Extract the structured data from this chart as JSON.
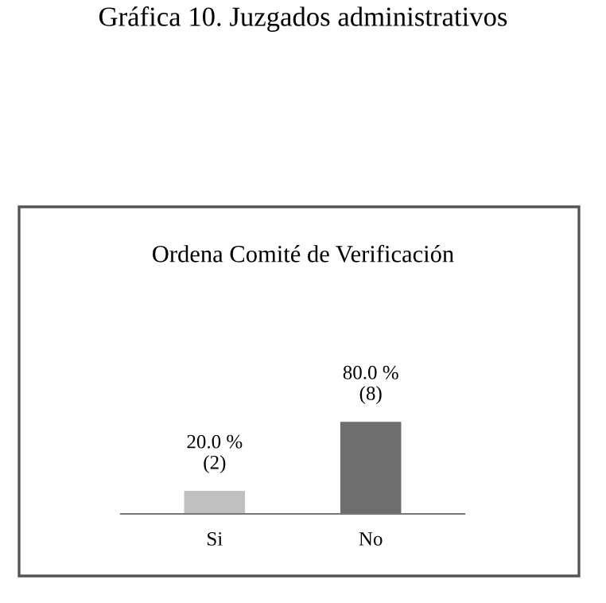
{
  "chart_data": {
    "type": "bar",
    "title": "Gráfica 10. Juzgados administrativos",
    "subtitle": "Ordena Comité de Verificación",
    "categories": [
      "Si",
      "No"
    ],
    "values": [
      20,
      80
    ],
    "colors": [
      "#c0c0c0",
      "#6e6e6e"
    ],
    "value_labels": [
      "20.0 %\n(2)",
      "80.0 %\n(8)"
    ],
    "tick_labels": "x",
    "grid": false,
    "legend": false
  }
}
